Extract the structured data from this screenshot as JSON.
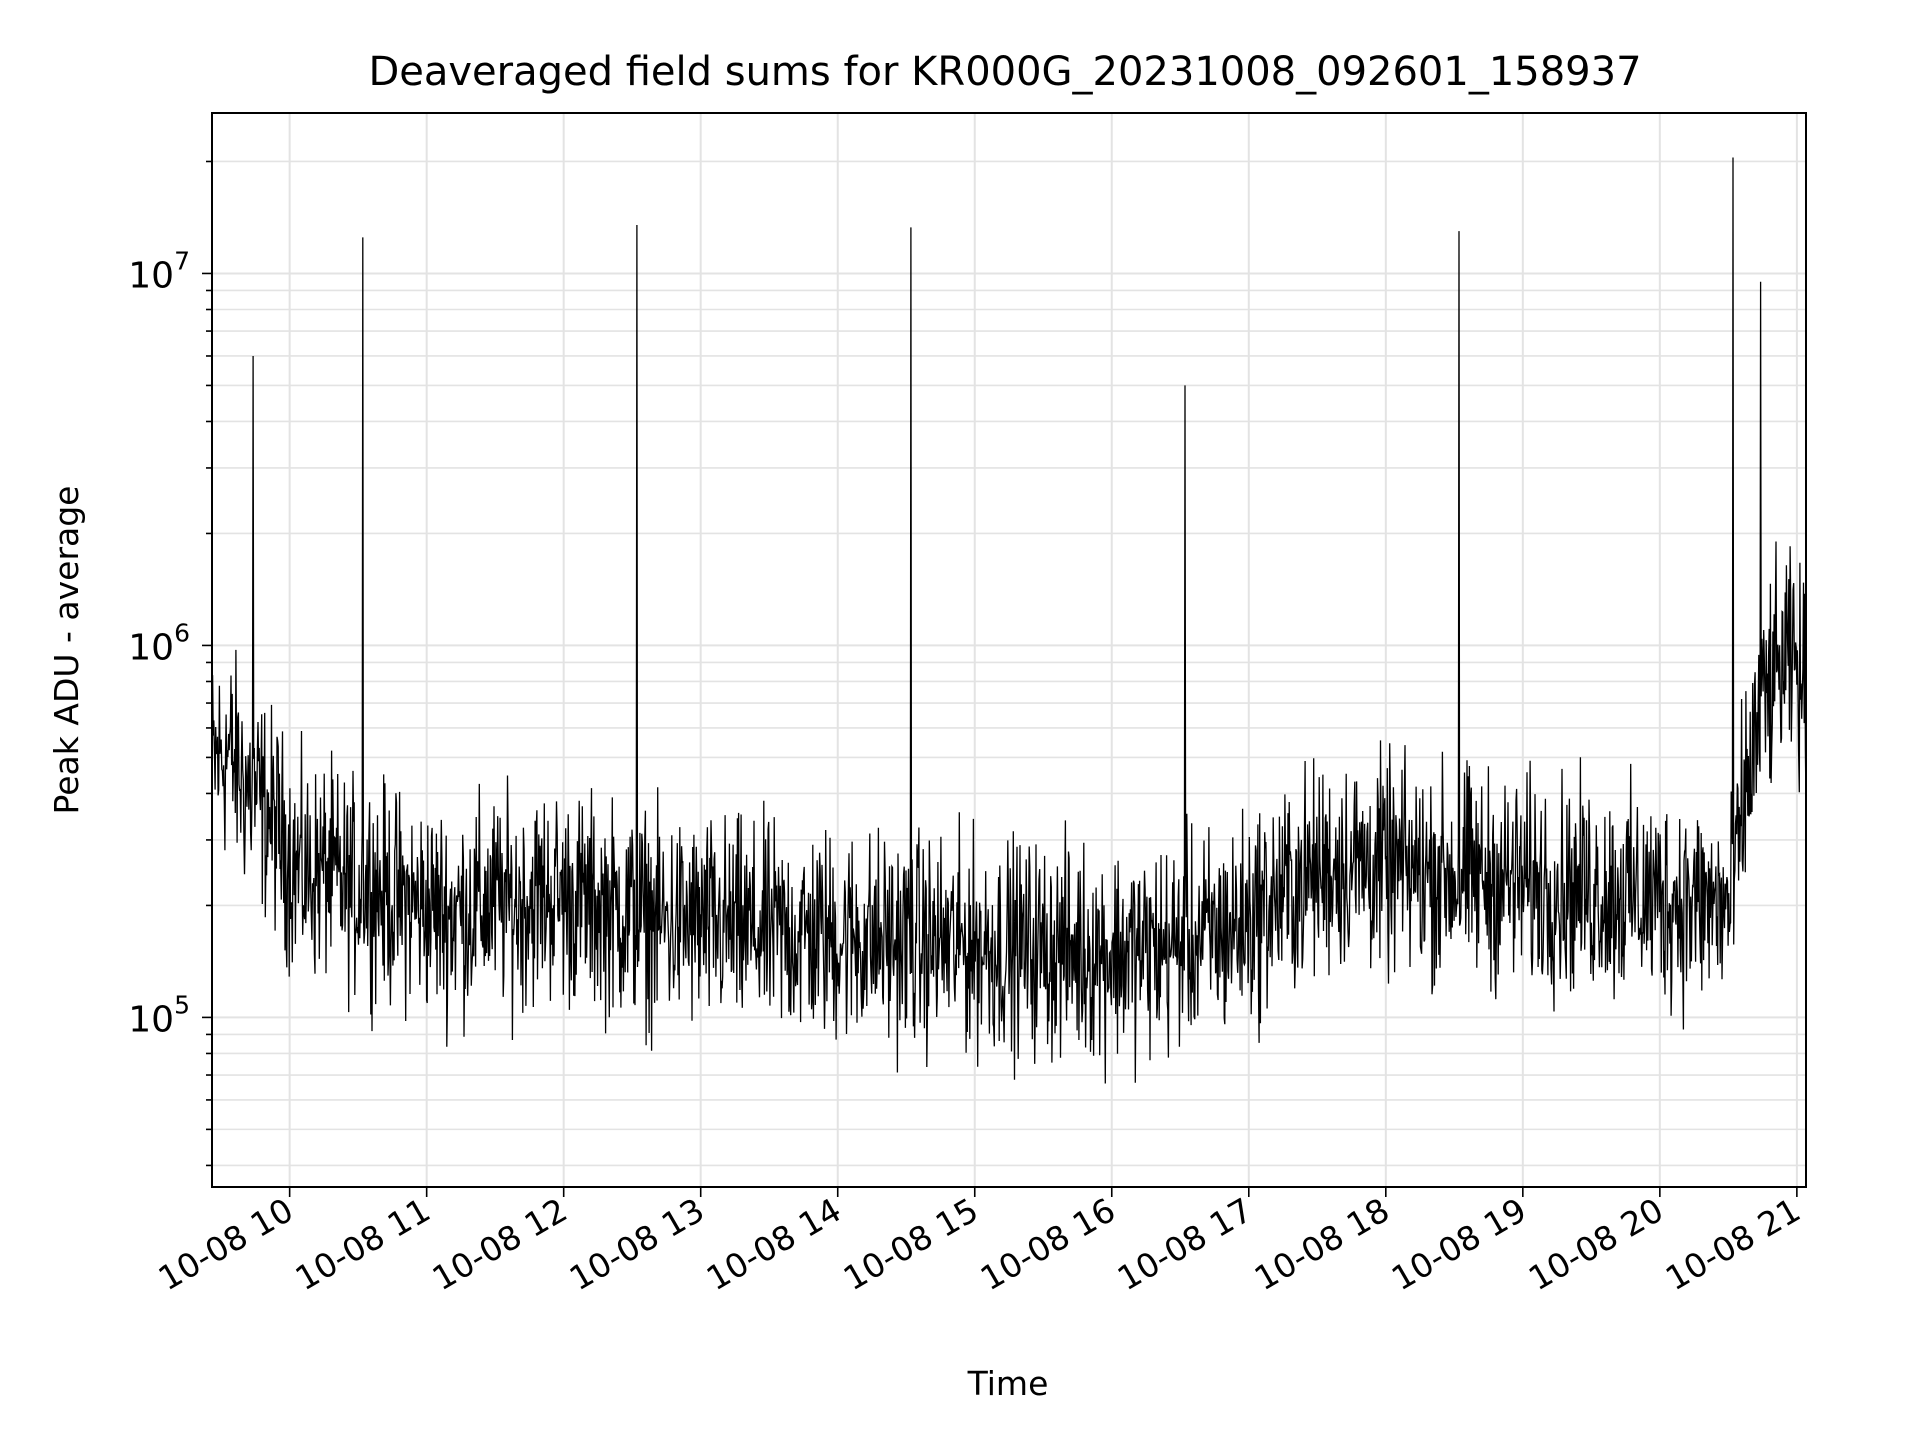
{
  "chart_data": {
    "type": "line",
    "title": "Deaveraged field sums for KR000G_20231008_092601_158937",
    "xlabel": "Time",
    "ylabel": "Peak ADU - average",
    "yscale": "log",
    "grid": true,
    "x_tick_labels": [
      "10-08 10",
      "10-08 11",
      "10-08 12",
      "10-08 13",
      "10-08 14",
      "10-08 15",
      "10-08 16",
      "10-08 17",
      "10-08 18",
      "10-08 19",
      "10-08 20",
      "10-08 21"
    ],
    "y_ticks": [
      {
        "base": "10",
        "exp": "5"
      },
      {
        "base": "10",
        "exp": "6"
      },
      {
        "base": "10",
        "exp": "7"
      }
    ],
    "xlim": [
      "2023-10-08 09:26",
      "2023-10-08 21:04"
    ],
    "ylim": [
      35000,
      27000000
    ],
    "line_color": "#000000",
    "series": [
      {
        "x": [
          "2023-10-08 09:26",
          "2023-10-08 09:33",
          "2023-10-08 09:40",
          "2023-10-08 09:47",
          "2023-10-08 09:54",
          "2023-10-08 10:01",
          "2023-10-08 10:08",
          "2023-10-08 10:15",
          "2023-10-08 10:22",
          "2023-10-08 10:29",
          "2023-10-08 10:36",
          "2023-10-08 10:43",
          "2023-10-08 10:50",
          "2023-10-08 10:57",
          "2023-10-08 11:04",
          "2023-10-08 11:11",
          "2023-10-08 11:18",
          "2023-10-08 11:25",
          "2023-10-08 11:32",
          "2023-10-08 11:39",
          "2023-10-08 11:46",
          "2023-10-08 11:53",
          "2023-10-08 12:00",
          "2023-10-08 12:07",
          "2023-10-08 12:14",
          "2023-10-08 12:21",
          "2023-10-08 12:28",
          "2023-10-08 12:35",
          "2023-10-08 12:42",
          "2023-10-08 12:49",
          "2023-10-08 12:56",
          "2023-10-08 13:03",
          "2023-10-08 13:10",
          "2023-10-08 13:17",
          "2023-10-08 13:24",
          "2023-10-08 13:31",
          "2023-10-08 13:38",
          "2023-10-08 13:45",
          "2023-10-08 13:52",
          "2023-10-08 13:59",
          "2023-10-08 14:06",
          "2023-10-08 14:13",
          "2023-10-08 14:20",
          "2023-10-08 14:27",
          "2023-10-08 14:34",
          "2023-10-08 14:41",
          "2023-10-08 14:48",
          "2023-10-08 14:55",
          "2023-10-08 15:02",
          "2023-10-08 15:09",
          "2023-10-08 15:16",
          "2023-10-08 15:23",
          "2023-10-08 15:30",
          "2023-10-08 15:37",
          "2023-10-08 15:44",
          "2023-10-08 15:51",
          "2023-10-08 15:58",
          "2023-10-08 16:05",
          "2023-10-08 16:12",
          "2023-10-08 16:19",
          "2023-10-08 16:26",
          "2023-10-08 16:33",
          "2023-10-08 16:40",
          "2023-10-08 16:47",
          "2023-10-08 16:54",
          "2023-10-08 17:01",
          "2023-10-08 17:08",
          "2023-10-08 17:15",
          "2023-10-08 17:22",
          "2023-10-08 17:29",
          "2023-10-08 17:36",
          "2023-10-08 17:43",
          "2023-10-08 17:50",
          "2023-10-08 17:57",
          "2023-10-08 18:04",
          "2023-10-08 18:11",
          "2023-10-08 18:18",
          "2023-10-08 18:25",
          "2023-10-08 18:32",
          "2023-10-08 18:39",
          "2023-10-08 18:46",
          "2023-10-08 18:53",
          "2023-10-08 19:00",
          "2023-10-08 19:07",
          "2023-10-08 19:14",
          "2023-10-08 19:21",
          "2023-10-08 19:28",
          "2023-10-08 19:35",
          "2023-10-08 19:42",
          "2023-10-08 19:49",
          "2023-10-08 19:56",
          "2023-10-08 20:03",
          "2023-10-08 20:10",
          "2023-10-08 20:17",
          "2023-10-08 20:24",
          "2023-10-08 20:31",
          "2023-10-08 20:38",
          "2023-10-08 20:45",
          "2023-10-08 20:52",
          "2023-10-08 20:59",
          "2023-10-08 21:03"
        ],
        "y": [
          480000,
          520000,
          430000,
          380000,
          330000,
          260000,
          240000,
          250000,
          230000,
          220000,
          230000,
          210000,
          205000,
          200000,
          195000,
          190000,
          195000,
          200000,
          205000,
          200000,
          210000,
          215000,
          210000,
          205000,
          200000,
          195000,
          190000,
          185000,
          180000,
          180000,
          178000,
          175000,
          175000,
          172000,
          170000,
          170000,
          168000,
          168000,
          166000,
          165000,
          165000,
          163000,
          162000,
          160000,
          160000,
          158000,
          158000,
          157000,
          156000,
          155000,
          155000,
          154000,
          153000,
          152000,
          152000,
          151000,
          150000,
          150000,
          151000,
          152000,
          155000,
          158000,
          162000,
          168000,
          175000,
          185000,
          200000,
          215000,
          230000,
          245000,
          255000,
          260000,
          258000,
          255000,
          250000,
          248000,
          245000,
          242000,
          240000,
          238000,
          235000,
          232000,
          230000,
          228000,
          225000,
          222000,
          220000,
          218000,
          215000,
          212000,
          210000,
          208000,
          205000,
          202000,
          200000,
          195000,
          420000,
          700000,
          850000,
          900000,
          750000
        ]
      }
    ],
    "spikes": [
      {
        "x": "2023-10-08 09:44",
        "y": 6000000
      },
      {
        "x": "2023-10-08 10:32",
        "y": 12500000
      },
      {
        "x": "2023-10-08 12:32",
        "y": 13500000
      },
      {
        "x": "2023-10-08 14:32",
        "y": 13300000
      },
      {
        "x": "2023-10-08 16:32",
        "y": 5000000
      },
      {
        "x": "2023-10-08 18:32",
        "y": 13000000
      },
      {
        "x": "2023-10-08 20:32",
        "y": 20500000
      },
      {
        "x": "2023-10-08 20:44",
        "y": 9500000
      }
    ]
  }
}
